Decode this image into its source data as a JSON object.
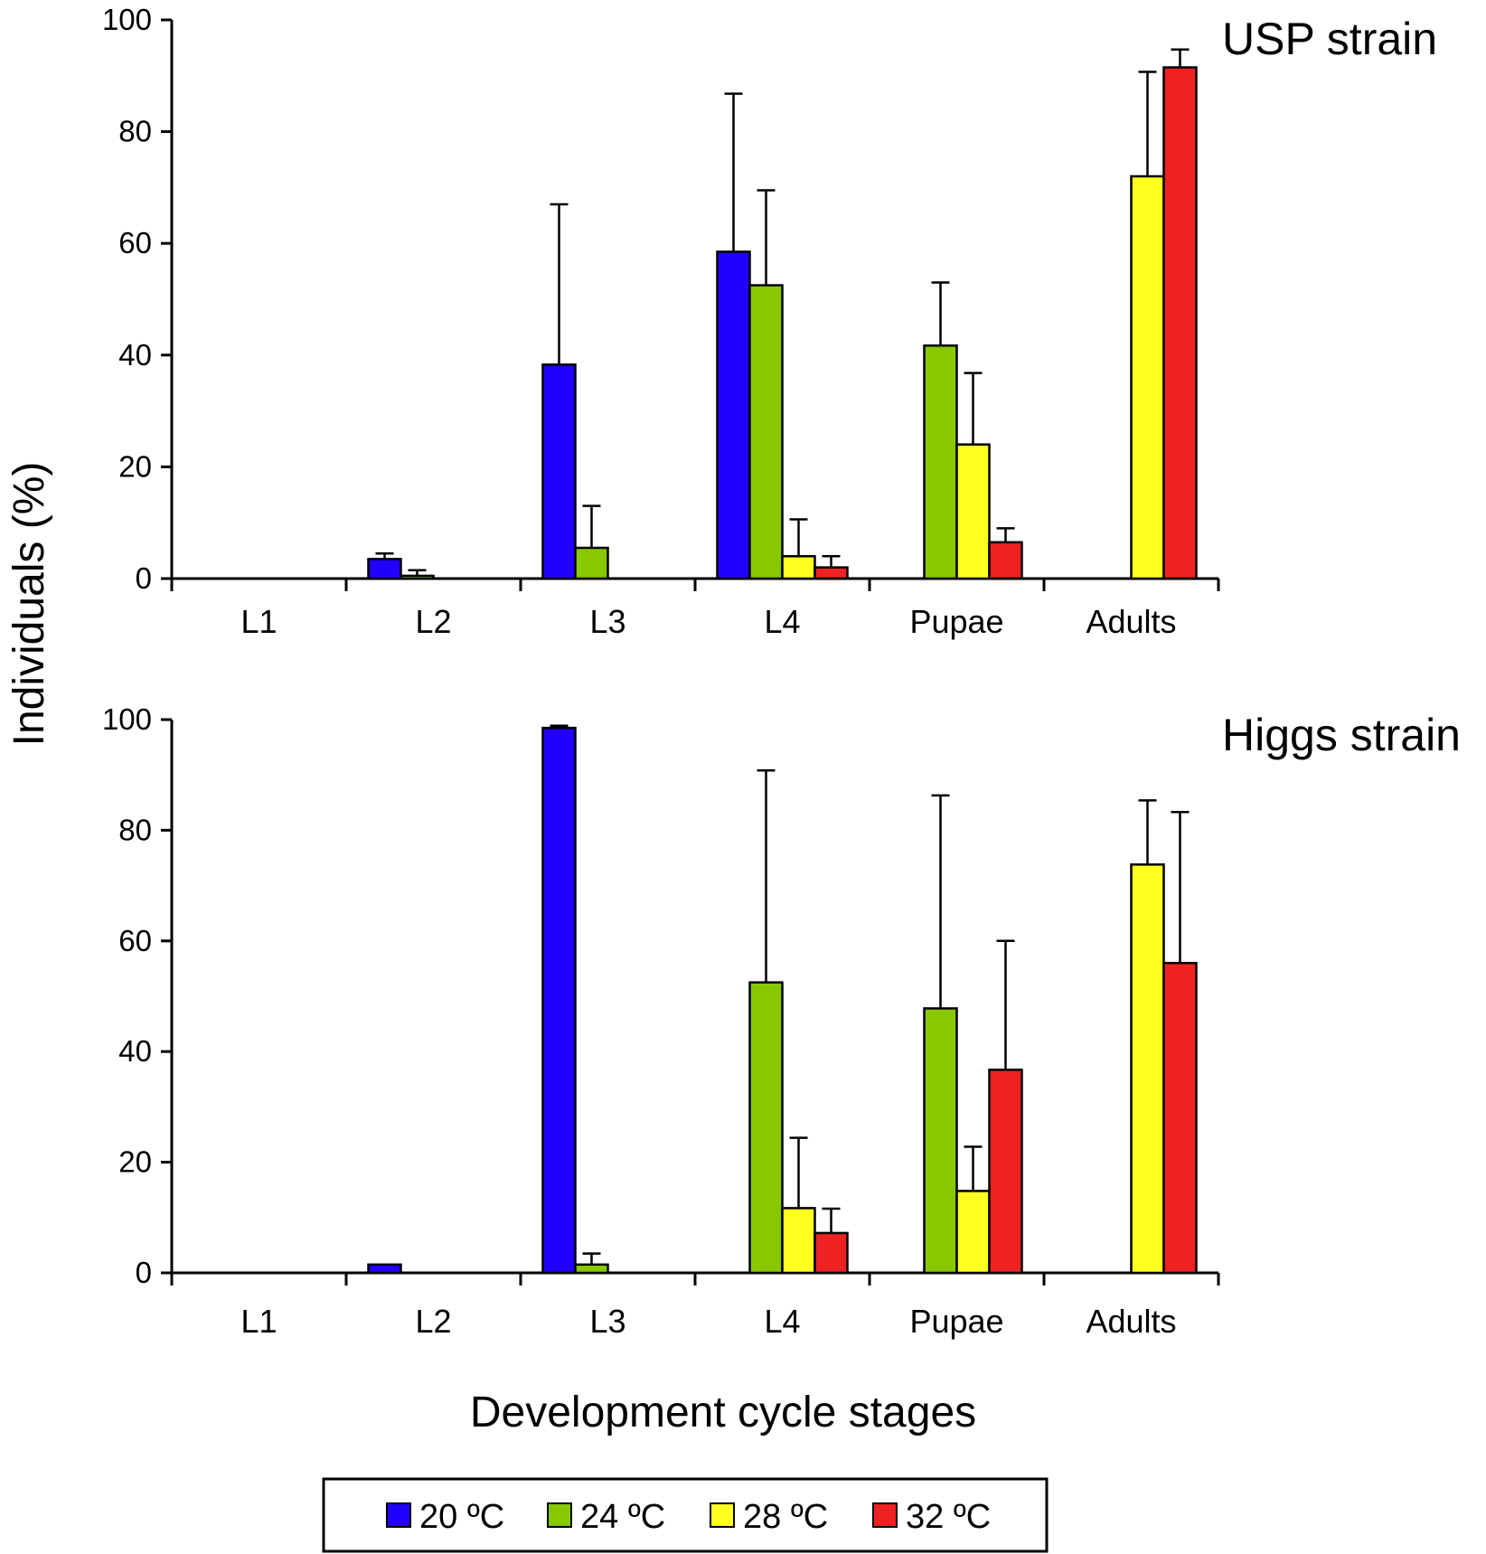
{
  "chart_data": {
    "type": "bar",
    "ylabel": "Individuals (%)",
    "xlabel": "Development cycle stages",
    "ylim": [
      0,
      100
    ],
    "yticks": [
      "0",
      "20",
      "40",
      "60",
      "80",
      "100"
    ],
    "categories": [
      "L1",
      "L2",
      "L3",
      "L4",
      "Pupae",
      "Adults"
    ],
    "legend": {
      "position": "bottom-center",
      "entries": [
        {
          "label": "20 ºC",
          "color": "#2200ff"
        },
        {
          "label": "24 ºC",
          "color": "#88c800"
        },
        {
          "label": "28 ºC",
          "color": "#ffff20"
        },
        {
          "label": "32 ºC",
          "color": "#ee2222"
        }
      ]
    },
    "panels": [
      {
        "title": "USP strain",
        "series": [
          {
            "name": "20 ºC",
            "color": "#2200ff",
            "values": [
              0,
              3.5,
              38.3,
              58.5,
              0,
              0
            ],
            "errors": [
              0,
              1,
              28.7,
              28.3,
              0,
              0
            ]
          },
          {
            "name": "24 ºC",
            "color": "#88c800",
            "values": [
              0,
              0.5,
              5.5,
              52.5,
              41.7,
              0
            ],
            "errors": [
              0,
              1,
              7.5,
              17,
              11.3,
              0
            ]
          },
          {
            "name": "28 ºC",
            "color": "#ffff20",
            "values": [
              0,
              0,
              0,
              4,
              24,
              72
            ],
            "errors": [
              0,
              0,
              0,
              6.6,
              12.8,
              18.7
            ]
          },
          {
            "name": "32 ºC",
            "color": "#ee2222",
            "values": [
              0,
              0,
              0,
              2,
              6.5,
              91.5
            ],
            "errors": [
              0,
              0,
              0,
              2,
              2.5,
              3.2
            ]
          }
        ]
      },
      {
        "title": "Higgs strain",
        "series": [
          {
            "name": "20 ºC",
            "color": "#2200ff",
            "values": [
              0,
              1.5,
              98.5,
              0,
              0,
              0
            ],
            "errors": [
              0,
              0,
              0.4,
              0,
              0,
              0
            ]
          },
          {
            "name": "24 ºC",
            "color": "#88c800",
            "values": [
              0,
              0,
              1.5,
              52.5,
              47.8,
              0
            ],
            "errors": [
              0,
              0,
              2,
              38.3,
              38.5,
              0
            ]
          },
          {
            "name": "28 ºC",
            "color": "#ffff20",
            "values": [
              0,
              0,
              0,
              11.7,
              14.8,
              73.8
            ],
            "errors": [
              0,
              0,
              0,
              12.7,
              8,
              11.6
            ]
          },
          {
            "name": "32 ºC",
            "color": "#ee2222",
            "values": [
              0,
              0,
              0,
              7.2,
              36.7,
              56
            ],
            "errors": [
              0,
              0,
              0,
              4.4,
              23.3,
              27.3
            ]
          }
        ]
      }
    ]
  }
}
